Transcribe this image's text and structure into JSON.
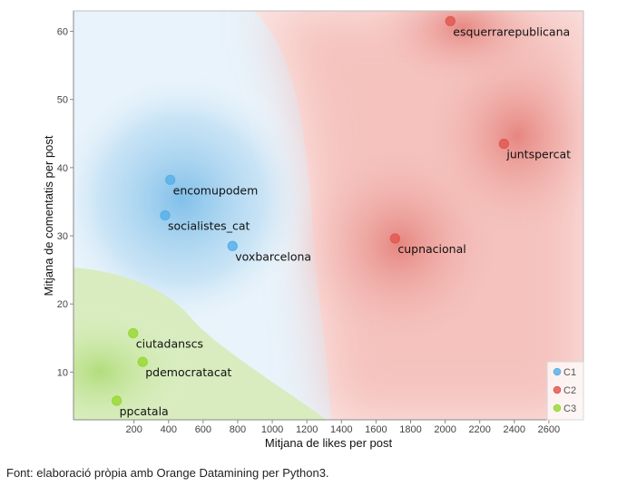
{
  "caption": "Font: elaboració pròpia amb Orange Datamining per Python3.",
  "chart_data": {
    "type": "scatter",
    "title": "",
    "xlabel": "Mitjana de likes per post",
    "ylabel": "Mitjana de comentatis per post",
    "xlim": [
      -150,
      2800
    ],
    "ylim": [
      3,
      63
    ],
    "xticks": [
      200,
      400,
      600,
      800,
      1000,
      1200,
      1400,
      1600,
      1800,
      2000,
      2200,
      2400,
      2600
    ],
    "yticks": [
      10,
      20,
      30,
      40,
      50,
      60
    ],
    "grid": false,
    "legend_position": "bottom-right",
    "colors": {
      "C1": "#5ab0e8",
      "C2": "#e05a52",
      "C3": "#9bd83a"
    },
    "series": [
      {
        "name": "C1",
        "points": [
          {
            "label": "encomupodem",
            "x": 410,
            "y": 38.2
          },
          {
            "label": "socialistes_cat",
            "x": 380,
            "y": 33
          },
          {
            "label": "voxbarcelona",
            "x": 770,
            "y": 28.5
          }
        ]
      },
      {
        "name": "C2",
        "points": [
          {
            "label": "esquerrarepublicana",
            "x": 2030,
            "y": 61.5
          },
          {
            "label": "juntspercat",
            "x": 2340,
            "y": 43.5
          },
          {
            "label": "cupnacional",
            "x": 1710,
            "y": 29.6
          }
        ]
      },
      {
        "name": "C3",
        "points": [
          {
            "label": "ciutadanscs",
            "x": 195,
            "y": 15.7
          },
          {
            "label": "pdemocratacat",
            "x": 250,
            "y": 11.5
          },
          {
            "label": "ppcatala",
            "x": 100,
            "y": 5.8
          }
        ]
      }
    ]
  }
}
